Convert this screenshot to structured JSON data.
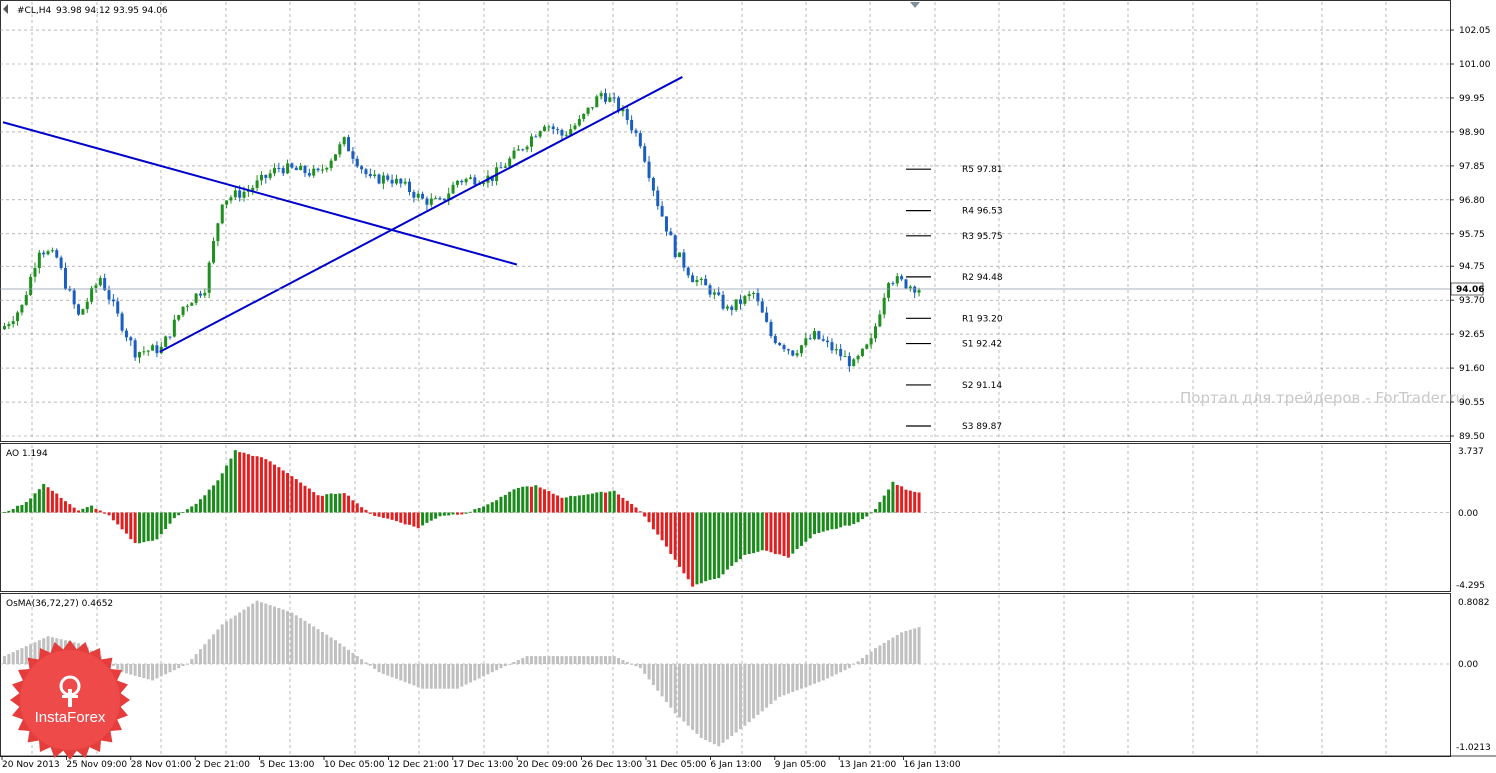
{
  "main_header": {
    "icon": "chart-window-icon",
    "symbol": "#CL,H4",
    "ohlc": "93.98 94.12 93.95 94.06"
  },
  "price_axis": {
    "ticks": [
      "102.05",
      "101.00",
      "99.95",
      "98.90",
      "97.85",
      "96.80",
      "95.75",
      "94.75",
      "93.70",
      "92.65",
      "91.60",
      "90.55",
      "89.50"
    ],
    "current_price": "94.06"
  },
  "pivots": [
    {
      "label": "R5 97.81",
      "value": 97.81
    },
    {
      "label": "R4 96.53",
      "value": 96.53
    },
    {
      "label": "R3 95.75",
      "value": 95.75
    },
    {
      "label": "R2 94.48",
      "value": 94.48
    },
    {
      "label": "R1 93.20",
      "value": 93.2
    },
    {
      "label": "S1 92.42",
      "value": 92.42
    },
    {
      "label": "S2 91.14",
      "value": 91.14
    },
    {
      "label": "S3 89.87",
      "value": 89.87
    }
  ],
  "ao_panel": {
    "label": "AO 1.194",
    "ticks": [
      "3.737",
      "0.00",
      "-4.295"
    ]
  },
  "osma_panel": {
    "label": "OsMA(36,72,27) 0.4652",
    "ticks": [
      "0.8082",
      "0.00",
      "-1.0213"
    ]
  },
  "time_axis": [
    "20 Nov 2013",
    "25 Nov 09:00",
    "28 Nov 01:00",
    "2 Dec 21:00",
    "5 Dec 13:00",
    "10 Dec 05:00",
    "12 Dec 21:00",
    "17 Dec 13:00",
    "20 Dec 09:00",
    "26 Dec 13:00",
    "31 Dec 05:00",
    "6 Jan 13:00",
    "9 Jan 05:00",
    "13 Jan 21:00",
    "16 Jan 13:00"
  ],
  "watermark": "Портал для трейдеров - ForTrader.ru",
  "logo": {
    "text": "InstaForex",
    "icon": "instaforex-logo-icon"
  },
  "colors": {
    "bull": "#1f8f1f",
    "bear": "#1a5fc0",
    "ao_up": "#1a8a1a",
    "ao_down": "#e02020",
    "osma": "#c0c0c0",
    "trendline": "#0000cc",
    "grid": "#8a8a8a",
    "logo": "#e53c3c"
  },
  "chart_data": [
    {
      "type": "candlestick",
      "title": "#CL,H4",
      "ylim": [
        89.2,
        102.6
      ],
      "price_anchors": [
        {
          "x": 0,
          "close": 92.9
        },
        {
          "x": 4,
          "close": 93.5
        },
        {
          "x": 8,
          "close": 95.3
        },
        {
          "x": 12,
          "close": 95.0
        },
        {
          "x": 14,
          "close": 94.2
        },
        {
          "x": 17,
          "close": 93.2
        },
        {
          "x": 22,
          "close": 94.4
        },
        {
          "x": 26,
          "close": 93.2
        },
        {
          "x": 30,
          "close": 92.1
        },
        {
          "x": 36,
          "close": 92.2
        },
        {
          "x": 41,
          "close": 93.5
        },
        {
          "x": 46,
          "close": 94.1
        },
        {
          "x": 50,
          "close": 96.8
        },
        {
          "x": 56,
          "close": 97.1
        },
        {
          "x": 63,
          "close": 97.8
        },
        {
          "x": 72,
          "close": 97.6
        },
        {
          "x": 78,
          "close": 98.6
        },
        {
          "x": 84,
          "close": 97.4
        },
        {
          "x": 88,
          "close": 97.5
        },
        {
          "x": 92,
          "close": 97.2
        },
        {
          "x": 96,
          "close": 96.8
        },
        {
          "x": 100,
          "close": 96.7
        },
        {
          "x": 104,
          "close": 97.4
        },
        {
          "x": 112,
          "close": 97.5
        },
        {
          "x": 118,
          "close": 98.3
        },
        {
          "x": 124,
          "close": 99.2
        },
        {
          "x": 128,
          "close": 98.8
        },
        {
          "x": 132,
          "close": 99.2
        },
        {
          "x": 137,
          "close": 100.1
        },
        {
          "x": 140,
          "close": 99.8
        },
        {
          "x": 143,
          "close": 99.3
        },
        {
          "x": 146,
          "close": 98.6
        },
        {
          "x": 150,
          "close": 96.7
        },
        {
          "x": 154,
          "close": 95.2
        },
        {
          "x": 158,
          "close": 94.4
        },
        {
          "x": 162,
          "close": 94.0
        },
        {
          "x": 166,
          "close": 93.4
        },
        {
          "x": 172,
          "close": 93.9
        },
        {
          "x": 176,
          "close": 92.6
        },
        {
          "x": 181,
          "close": 92.1
        },
        {
          "x": 186,
          "close": 92.6
        },
        {
          "x": 190,
          "close": 92.2
        },
        {
          "x": 195,
          "close": 91.7
        },
        {
          "x": 199,
          "close": 92.4
        },
        {
          "x": 203,
          "close": 94.4
        },
        {
          "x": 207,
          "close": 94.2
        },
        {
          "x": 210,
          "close": 94.06
        }
      ],
      "trendlines": [
        {
          "from": [
            0,
            99.2
          ],
          "to": [
            118,
            94.8
          ]
        },
        {
          "from": [
            36,
            92.1
          ],
          "to": [
            156,
            100.6
          ]
        }
      ],
      "current_price": 94.06
    },
    {
      "type": "histogram",
      "title": "AO 1.194",
      "ylim": [
        -4.295,
        3.737
      ],
      "anchors": [
        {
          "x": 0,
          "v": 0
        },
        {
          "x": 5,
          "v": 0.6
        },
        {
          "x": 9,
          "v": 1.7
        },
        {
          "x": 13,
          "v": 0.9
        },
        {
          "x": 17,
          "v": 0.1
        },
        {
          "x": 20,
          "v": 0.4
        },
        {
          "x": 24,
          "v": -0.2
        },
        {
          "x": 30,
          "v": -1.8
        },
        {
          "x": 35,
          "v": -1.6
        },
        {
          "x": 39,
          "v": -0.3
        },
        {
          "x": 44,
          "v": 0.5
        },
        {
          "x": 49,
          "v": 1.9
        },
        {
          "x": 53,
          "v": 3.7
        },
        {
          "x": 60,
          "v": 3.2
        },
        {
          "x": 66,
          "v": 2.2
        },
        {
          "x": 72,
          "v": 1.0
        },
        {
          "x": 78,
          "v": 1.2
        },
        {
          "x": 84,
          "v": -0.1
        },
        {
          "x": 90,
          "v": -0.5
        },
        {
          "x": 95,
          "v": -0.9
        },
        {
          "x": 100,
          "v": -0.2
        },
        {
          "x": 106,
          "v": -0.05
        },
        {
          "x": 112,
          "v": 0.6
        },
        {
          "x": 118,
          "v": 1.5
        },
        {
          "x": 122,
          "v": 1.6
        },
        {
          "x": 128,
          "v": 0.9
        },
        {
          "x": 134,
          "v": 1.1
        },
        {
          "x": 140,
          "v": 1.3
        },
        {
          "x": 146,
          "v": 0.1
        },
        {
          "x": 152,
          "v": -2.0
        },
        {
          "x": 158,
          "v": -4.3
        },
        {
          "x": 164,
          "v": -3.8
        },
        {
          "x": 170,
          "v": -2.5
        },
        {
          "x": 174,
          "v": -2.2
        },
        {
          "x": 180,
          "v": -2.6
        },
        {
          "x": 186,
          "v": -1.3
        },
        {
          "x": 190,
          "v": -1.0
        },
        {
          "x": 196,
          "v": -0.6
        },
        {
          "x": 200,
          "v": 0.2
        },
        {
          "x": 204,
          "v": 1.8
        },
        {
          "x": 207,
          "v": 1.4
        },
        {
          "x": 210,
          "v": 1.194
        }
      ]
    },
    {
      "type": "histogram",
      "title": "OsMA(36,72,27) 0.4652",
      "ylim": [
        -1.0213,
        0.8082
      ],
      "anchors": [
        {
          "x": 0,
          "v": 0.1
        },
        {
          "x": 10,
          "v": 0.35
        },
        {
          "x": 18,
          "v": 0.25
        },
        {
          "x": 27,
          "v": -0.1
        },
        {
          "x": 34,
          "v": -0.2
        },
        {
          "x": 42,
          "v": 0.0
        },
        {
          "x": 50,
          "v": 0.5
        },
        {
          "x": 58,
          "v": 0.8
        },
        {
          "x": 66,
          "v": 0.65
        },
        {
          "x": 76,
          "v": 0.3
        },
        {
          "x": 86,
          "v": -0.1
        },
        {
          "x": 96,
          "v": -0.3
        },
        {
          "x": 104,
          "v": -0.3
        },
        {
          "x": 112,
          "v": -0.1
        },
        {
          "x": 120,
          "v": 0.1
        },
        {
          "x": 130,
          "v": 0.1
        },
        {
          "x": 140,
          "v": 0.1
        },
        {
          "x": 146,
          "v": -0.05
        },
        {
          "x": 154,
          "v": -0.6
        },
        {
          "x": 160,
          "v": -0.9
        },
        {
          "x": 164,
          "v": -1.0
        },
        {
          "x": 170,
          "v": -0.75
        },
        {
          "x": 178,
          "v": -0.4
        },
        {
          "x": 188,
          "v": -0.2
        },
        {
          "x": 194,
          "v": -0.05
        },
        {
          "x": 200,
          "v": 0.2
        },
        {
          "x": 206,
          "v": 0.4
        },
        {
          "x": 210,
          "v": 0.4652
        }
      ]
    }
  ]
}
